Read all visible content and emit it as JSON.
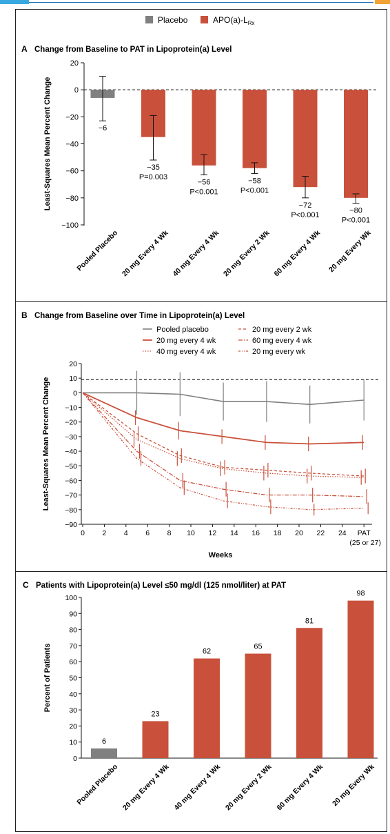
{
  "legend_top": {
    "items": [
      {
        "label": "Placebo",
        "color": "#808080"
      },
      {
        "label": "APO(a)-L",
        "sub": "Rx",
        "color": "#c9513b"
      }
    ]
  },
  "colors": {
    "placebo": "#808080",
    "drug": "#c9513b"
  },
  "chart_data": [
    {
      "type": "bar",
      "panel": "A",
      "title": "Change from Baseline to PAT in Lipoprotein(a) Level",
      "ylabel": "Least-Squares Mean Percent Change",
      "ylim": [
        -100,
        20
      ],
      "yticks": [
        20,
        0,
        -20,
        -40,
        -60,
        -80,
        -100
      ],
      "reference_line": 0,
      "categories": [
        "Pooled Placebo",
        "20 mg Every 4 Wk",
        "40 mg Every 4 Wk",
        "20 mg Every 2 Wk",
        "60 mg Every 4 Wk",
        "20 mg Every Wk"
      ],
      "values": [
        -6,
        -35,
        -56,
        -58,
        -72,
        -80
      ],
      "value_labels": [
        "−6",
        "−35",
        "−56",
        "−58",
        "−72",
        "−80"
      ],
      "p_labels": [
        "",
        "P=0.003",
        "P<0.001",
        "P<0.001",
        "P<0.001",
        "P<0.001"
      ],
      "error_low": [
        -23,
        -52,
        -63,
        -62,
        -80,
        -84
      ],
      "error_high": [
        10,
        -19,
        -48,
        -54,
        -64,
        -77
      ],
      "groups": [
        "placebo",
        "drug",
        "drug",
        "drug",
        "drug",
        "drug"
      ]
    },
    {
      "type": "line",
      "panel": "B",
      "title": "Change from Baseline over Time in Lipoprotein(a) Level",
      "ylabel": "Least-Squares Mean Percent Change",
      "xlabel": "Weeks",
      "ylim": [
        -90,
        20
      ],
      "yticks": [
        20,
        10,
        0,
        -10,
        -20,
        -30,
        -40,
        -50,
        -60,
        -70,
        -80,
        -90
      ],
      "xticks": [
        "0",
        "2",
        "4",
        "6",
        "8",
        "10",
        "12",
        "14",
        "16",
        "18",
        "20",
        "22",
        "24",
        "PAT"
      ],
      "xtick_note": "(25 or 27)",
      "reference_line": 9,
      "series": [
        {
          "name": "Pooled placebo",
          "x": [
            0,
            5,
            9,
            13,
            17,
            21,
            26
          ],
          "y": [
            0,
            0,
            -1,
            -6,
            -6,
            -8,
            -5
          ],
          "err": [
            0,
            15,
            15,
            13,
            14,
            13,
            14
          ]
        },
        {
          "name": "20 mg every 4 wk",
          "x": [
            0,
            5,
            9,
            13,
            17,
            21,
            26
          ],
          "y": [
            0,
            -17,
            -26,
            -30,
            -34,
            -35,
            -34
          ],
          "err": [
            0,
            5,
            6,
            5,
            5,
            5,
            5
          ]
        },
        {
          "name": "40 mg every 4 wk",
          "x": [
            0,
            5,
            9,
            13,
            17,
            21,
            26
          ],
          "y": [
            0,
            -32,
            -45,
            -52,
            -55,
            -57,
            -58
          ],
          "err": [
            0,
            5,
            5,
            5,
            5,
            5,
            5
          ]
        },
        {
          "name": "20 mg every 2 wk",
          "x": [
            0,
            5,
            9,
            13,
            17,
            21,
            26
          ],
          "y": [
            0,
            -28,
            -43,
            -51,
            -53,
            -55,
            -57
          ],
          "err": [
            0,
            5,
            5,
            5,
            5,
            5,
            5
          ]
        },
        {
          "name": "60 mg every 4 wk",
          "x": [
            0,
            5,
            9,
            13,
            17,
            21,
            26
          ],
          "y": [
            0,
            -40,
            -60,
            -66,
            -70,
            -70,
            -71
          ],
          "err": [
            0,
            5,
            5,
            5,
            5,
            5,
            5
          ]
        },
        {
          "name": "20 mg every wk",
          "x": [
            0,
            5,
            9,
            13,
            17,
            21,
            26
          ],
          "y": [
            0,
            -45,
            -65,
            -74,
            -78,
            -80,
            -79
          ],
          "err": [
            0,
            5,
            5,
            5,
            5,
            4,
            4
          ]
        }
      ]
    },
    {
      "type": "bar",
      "panel": "C",
      "title": "Patients with Lipoprotein(a) Level ≤50 mg/dl (125 nmol/liter) at PAT",
      "ylabel": "Percent of Patients",
      "ylim": [
        0,
        100
      ],
      "yticks": [
        100,
        90,
        80,
        70,
        60,
        50,
        40,
        30,
        20,
        10,
        0
      ],
      "categories": [
        "Pooled Placebo",
        "20 mg Every 4 Wk",
        "40 mg Every 4 Wk",
        "20 mg Every 2 Wk",
        "60 mg Every 4 Wk",
        "20 mg Every Wk"
      ],
      "values": [
        6,
        23,
        62,
        65,
        81,
        98
      ],
      "value_labels": [
        "6",
        "23",
        "62",
        "65",
        "81",
        "98"
      ],
      "groups": [
        "placebo",
        "drug",
        "drug",
        "drug",
        "drug",
        "drug"
      ]
    }
  ]
}
